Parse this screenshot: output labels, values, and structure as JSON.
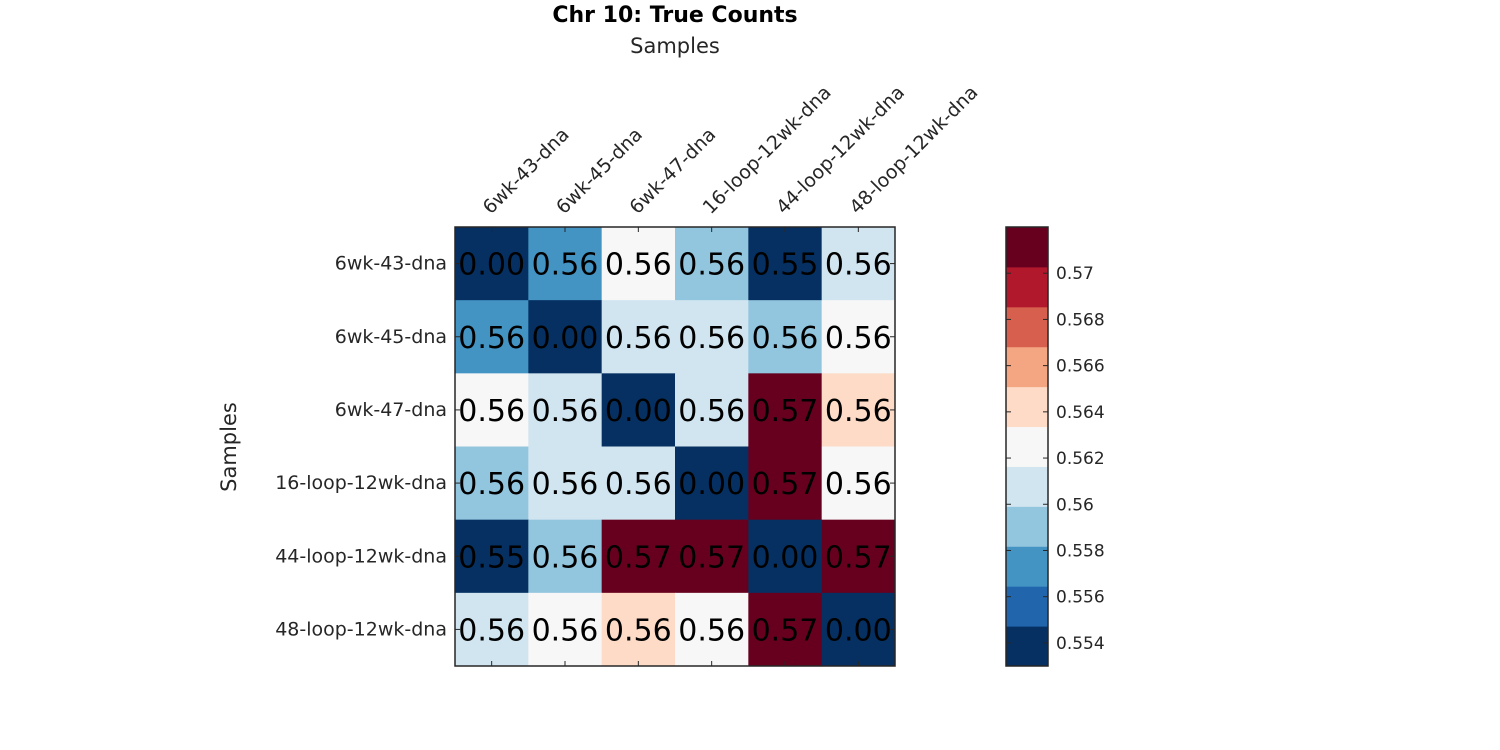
{
  "chart_data": {
    "type": "heatmap",
    "title": "Chr 10: True Counts",
    "xlabel": "Samples",
    "ylabel": "Samples",
    "x_categories": [
      "6wk-43-dna",
      "6wk-45-dna",
      "6wk-47-dna",
      "16-loop-12wk-dna",
      "44-loop-12wk-dna",
      "48-loop-12wk-dna"
    ],
    "y_categories": [
      "6wk-43-dna",
      "6wk-45-dna",
      "6wk-47-dna",
      "16-loop-12wk-dna",
      "44-loop-12wk-dna",
      "48-loop-12wk-dna"
    ],
    "values": [
      [
        0.0,
        0.5565,
        0.5625,
        0.5585,
        0.553,
        0.5605
      ],
      [
        0.5565,
        0.0,
        0.5605,
        0.5605,
        0.5585,
        0.5625
      ],
      [
        0.5625,
        0.5605,
        0.0,
        0.5605,
        0.5725,
        0.5645
      ],
      [
        0.5585,
        0.5605,
        0.5605,
        0.0,
        0.5725,
        0.5625
      ],
      [
        0.553,
        0.5585,
        0.5725,
        0.5725,
        0.0,
        0.5725
      ],
      [
        0.5605,
        0.5625,
        0.5645,
        0.5625,
        0.5725,
        0.0
      ]
    ],
    "cell_labels": [
      [
        "0.00",
        "0.56",
        "0.56",
        "0.56",
        "0.55",
        "0.56"
      ],
      [
        "0.56",
        "0.00",
        "0.56",
        "0.56",
        "0.56",
        "0.56"
      ],
      [
        "0.56",
        "0.56",
        "0.00",
        "0.56",
        "0.57",
        "0.56"
      ],
      [
        "0.56",
        "0.56",
        "0.56",
        "0.00",
        "0.57",
        "0.56"
      ],
      [
        "0.55",
        "0.56",
        "0.57",
        "0.57",
        "0.00",
        "0.57"
      ],
      [
        "0.56",
        "0.56",
        "0.56",
        "0.56",
        "0.57",
        "0.00"
      ]
    ],
    "colorbar": {
      "limits": [
        0.553,
        0.572
      ],
      "ticks": [
        0.554,
        0.556,
        0.558,
        0.56,
        0.562,
        0.564,
        0.566,
        0.568,
        0.57
      ],
      "tick_labels": [
        "0.554",
        "0.556",
        "0.558",
        "0.56",
        "0.562",
        "0.564",
        "0.566",
        "0.568",
        "0.57"
      ],
      "colors": [
        "#053061",
        "#2166ac",
        "#4393c3",
        "#92c5de",
        "#d1e5f0",
        "#f7f7f7",
        "#fddbc7",
        "#f4a582",
        "#d6604d",
        "#b2182b",
        "#67001f"
      ],
      "placement": "right"
    }
  }
}
